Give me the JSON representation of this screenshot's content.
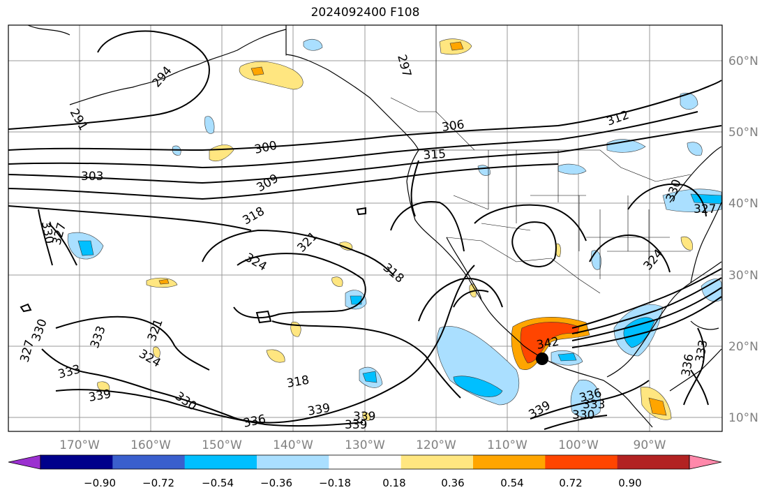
{
  "title": "2024092400 F108",
  "map": {
    "lon_ticks": [
      "170°W",
      "160°W",
      "150°W",
      "140°W",
      "130°W",
      "120°W",
      "110°W",
      "100°W",
      "90°W"
    ],
    "lat_ticks": [
      "60°N",
      "50°N",
      "40°N",
      "30°N",
      "20°N",
      "10°N"
    ],
    "contour_labels": [
      "291",
      "294",
      "297",
      "300",
      "303",
      "306",
      "309",
      "312",
      "315",
      "318",
      "321",
      "324",
      "327",
      "330",
      "333",
      "336",
      "339",
      "342"
    ]
  },
  "colorbar": {
    "ticks": [
      "−0.90",
      "−0.72",
      "−0.54",
      "−0.36",
      "−0.18",
      "0.18",
      "0.36",
      "0.54",
      "0.72",
      "0.90"
    ],
    "colors": [
      "#9b30d0",
      "#00008b",
      "#3a5fcd",
      "#00bfff",
      "#aadfff",
      "#ffffff",
      "#ffe680",
      "#ffa500",
      "#ff4500",
      "#b22222",
      "#ff88aa"
    ]
  },
  "colors": {
    "frame": "#000000",
    "grid": "#999999",
    "blue_light": "#aadfff",
    "blue_mid": "#00bfff",
    "yellow": "#ffe680",
    "orange": "#ffa500",
    "red": "#ff4500"
  }
}
